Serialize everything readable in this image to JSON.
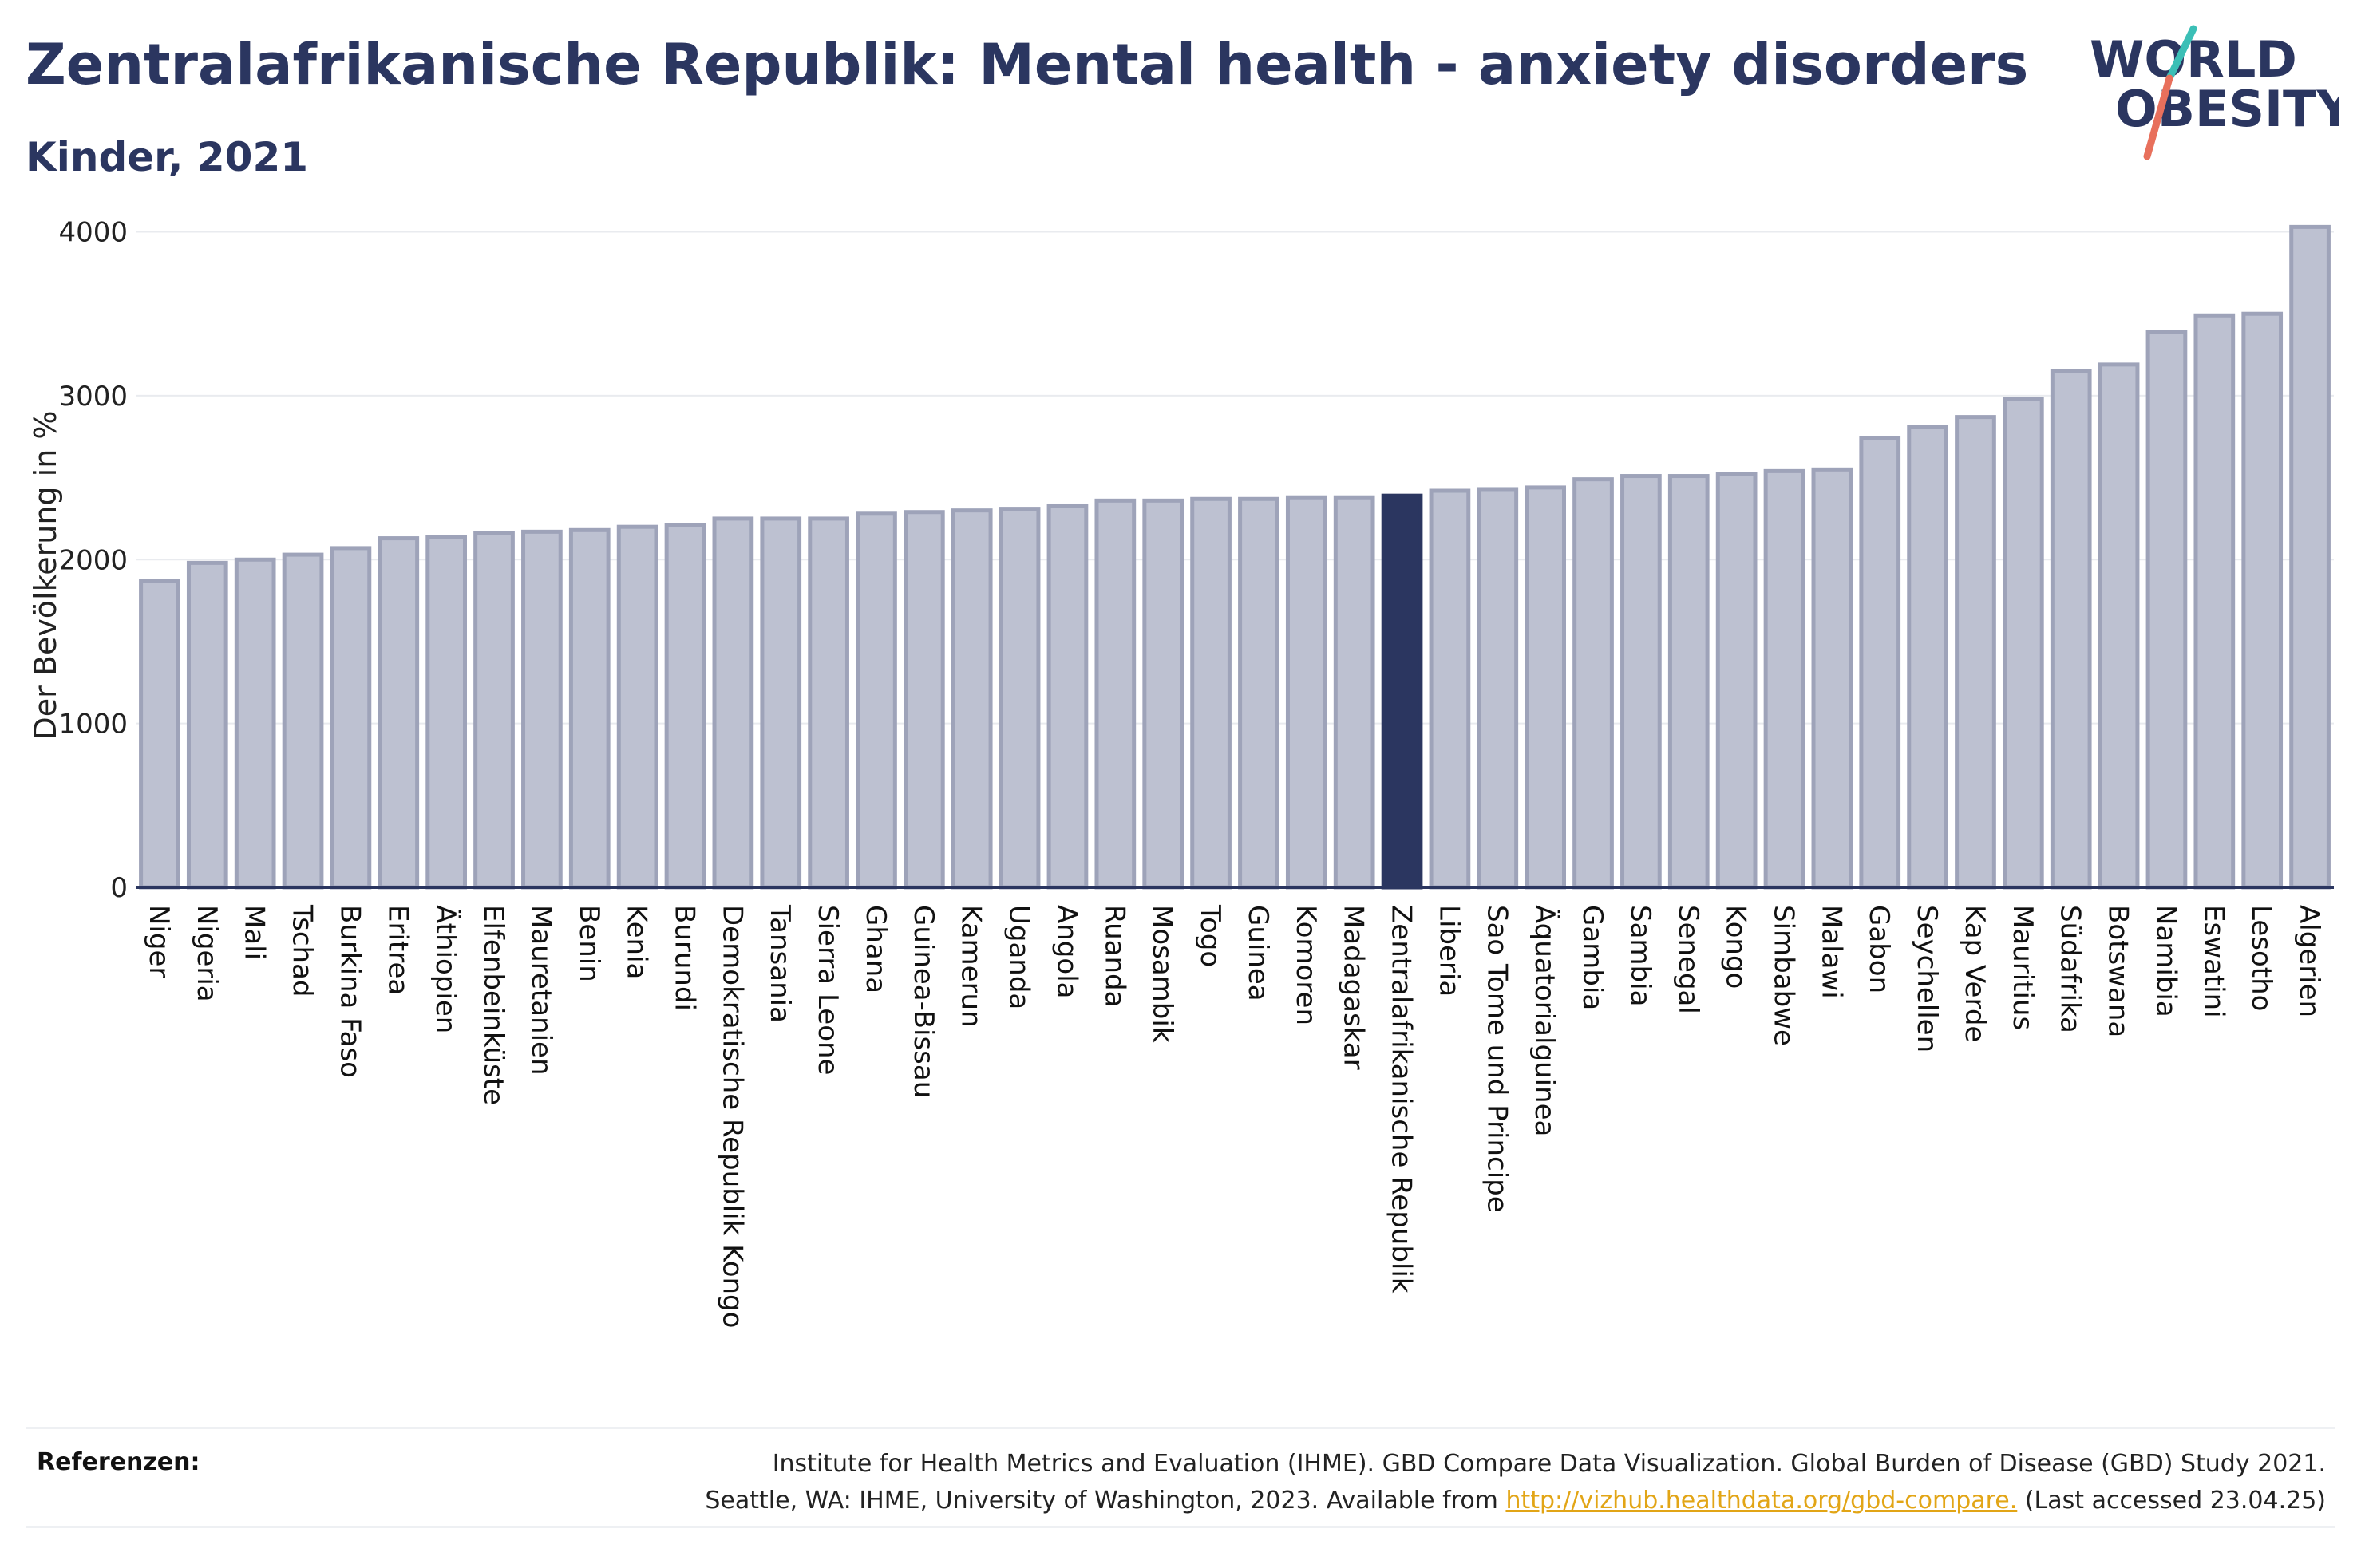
{
  "header": {
    "title": "Zentralafrikanische Republik: Mental health - anxiety disorders",
    "subtitle": "Kinder, 2021"
  },
  "logo": {
    "line1": "WORLD",
    "line2": "OBESITY"
  },
  "colors": {
    "bar": "#bdc1d1",
    "bar_border": "#9ea3b9",
    "highlight": "#2b3660",
    "text": "#2b3660",
    "logo_slash_teal": "#3bbfb6",
    "logo_slash_red": "#e8705c",
    "link": "#e2a516"
  },
  "chart_data": {
    "type": "bar",
    "title": "Zentralafrikanische Republik: Mental health - anxiety disorders",
    "subtitle": "Kinder, 2021",
    "ylabel": "Der Bevölkerung in %",
    "xlabel": "",
    "ylim": [
      0,
      4100
    ],
    "yticks": [
      0,
      1000,
      2000,
      3000,
      4000
    ],
    "grid": true,
    "highlight": "Zentralafrikanische Republik",
    "categories": [
      "Niger",
      "Nigeria",
      "Mali",
      "Tschad",
      "Burkina Faso",
      "Eritrea",
      "Äthiopien",
      "Elfenbeinküste",
      "Mauretanien",
      "Benin",
      "Kenia",
      "Burundi",
      "Demokratische Republik Kongo",
      "Tansania",
      "Sierra Leone",
      "Ghana",
      "Guinea-Bissau",
      "Kamerun",
      "Uganda",
      "Angola",
      "Ruanda",
      "Mosambik",
      "Togo",
      "Guinea",
      "Komoren",
      "Madagaskar",
      "Zentralafrikanische Republik",
      "Liberia",
      "Sao Tome und Principe",
      "Äquatorialguinea",
      "Gambia",
      "Sambia",
      "Senegal",
      "Kongo",
      "Simbabwe",
      "Malawi",
      "Gabon",
      "Seychellen",
      "Kap Verde",
      "Mauritius",
      "Südafrika",
      "Botswana",
      "Namibia",
      "Eswatini",
      "Lesotho",
      "Algerien"
    ],
    "values": [
      1870,
      1980,
      2000,
      2030,
      2070,
      2130,
      2140,
      2160,
      2170,
      2180,
      2200,
      2210,
      2250,
      2250,
      2250,
      2280,
      2290,
      2300,
      2310,
      2330,
      2360,
      2360,
      2370,
      2370,
      2380,
      2380,
      2390,
      2420,
      2430,
      2440,
      2490,
      2510,
      2510,
      2520,
      2540,
      2550,
      2740,
      2810,
      2870,
      2980,
      3150,
      3190,
      3390,
      3490,
      3500,
      4030
    ]
  },
  "references": {
    "label": "Referenzen:",
    "line1": "Institute for Health Metrics and Evaluation (IHME). GBD Compare Data Visualization. Global Burden of Disease (GBD) Study 2021.",
    "line2_pre": "Seattle, WA: IHME, University of Washington, 2023. Available from ",
    "link": "http://vizhub.healthdata.org/gbd-compare.",
    "line2_post": " (Last accessed 23.04.25)"
  }
}
